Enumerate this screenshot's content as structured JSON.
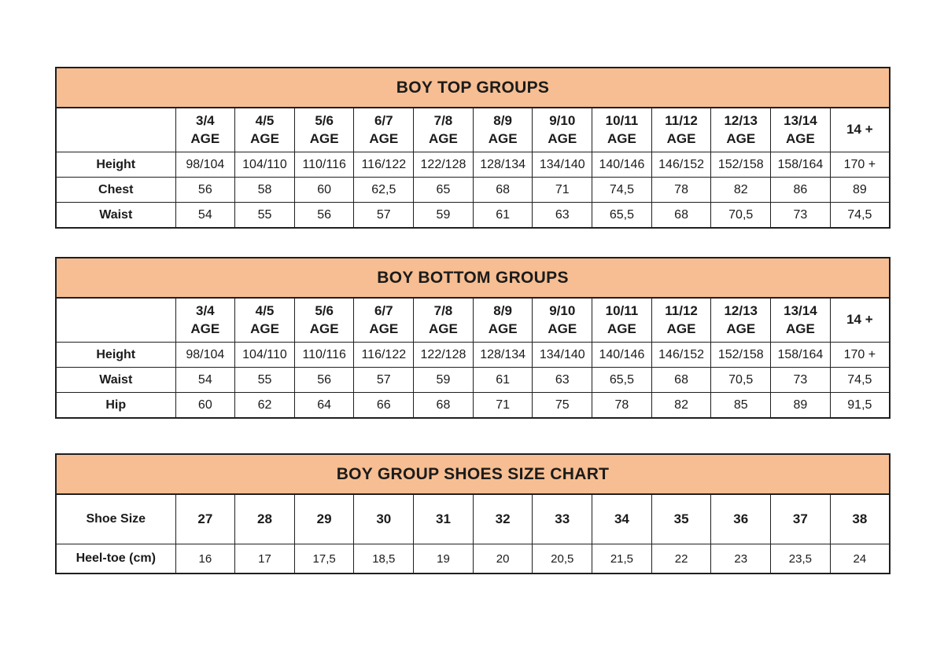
{
  "page": {
    "background": "#ffffff",
    "header_fill": "#f6be92",
    "border_color": "#1f1f1f",
    "text_color": "#1b1b1b"
  },
  "tables": [
    {
      "id": "boy-top-groups",
      "title": "BOY TOP GROUPS",
      "columns": [
        "3/4\nAGE",
        "4/5\nAGE",
        "5/6\nAGE",
        "6/7\nAGE",
        "7/8\nAGE",
        "8/9\nAGE",
        "9/10\nAGE",
        "10/11\nAGE",
        "11/12\nAGE",
        "12/13\nAGE",
        "13/14\nAGE",
        "14 +"
      ],
      "rows": [
        {
          "label": "Height",
          "values": [
            "98/104",
            "104/110",
            "110/116",
            "116/122",
            "122/128",
            "128/134",
            "134/140",
            "140/146",
            "146/152",
            "152/158",
            "158/164",
            "170 +"
          ]
        },
        {
          "label": "Chest",
          "values": [
            "56",
            "58",
            "60",
            "62,5",
            "65",
            "68",
            "71",
            "74,5",
            "78",
            "82",
            "86",
            "89"
          ]
        },
        {
          "label": "Waist",
          "values": [
            "54",
            "55",
            "56",
            "57",
            "59",
            "61",
            "63",
            "65,5",
            "68",
            "70,5",
            "73",
            "74,5"
          ]
        }
      ]
    },
    {
      "id": "boy-bottom-groups",
      "title": "BOY BOTTOM GROUPS",
      "columns": [
        "3/4\nAGE",
        "4/5\nAGE",
        "5/6\nAGE",
        "6/7\nAGE",
        "7/8\nAGE",
        "8/9\nAGE",
        "9/10\nAGE",
        "10/11\nAGE",
        "11/12\nAGE",
        "12/13\nAGE",
        "13/14\nAGE",
        "14 +"
      ],
      "rows": [
        {
          "label": "Height",
          "values": [
            "98/104",
            "104/110",
            "110/116",
            "116/122",
            "122/128",
            "128/134",
            "134/140",
            "140/146",
            "146/152",
            "152/158",
            "158/164",
            "170 +"
          ]
        },
        {
          "label": "Waist",
          "values": [
            "54",
            "55",
            "56",
            "57",
            "59",
            "61",
            "63",
            "65,5",
            "68",
            "70,5",
            "73",
            "74,5"
          ]
        },
        {
          "label": "Hip",
          "values": [
            "60",
            "62",
            "64",
            "66",
            "68",
            "71",
            "75",
            "78",
            "82",
            "85",
            "89",
            "91,5"
          ]
        }
      ]
    },
    {
      "id": "boy-shoes-size-chart",
      "title": "BOY GROUP SHOES SIZE CHART",
      "columns": [],
      "rows": [
        {
          "label": "Shoe Size",
          "bold": true,
          "values": [
            "27",
            "28",
            "29",
            "30",
            "31",
            "32",
            "33",
            "34",
            "35",
            "36",
            "37",
            "38"
          ]
        },
        {
          "label": "Heel-toe (cm)",
          "values": [
            "16",
            "17",
            "17,5",
            "18,5",
            "19",
            "20",
            "20,5",
            "21,5",
            "22",
            "23",
            "23,5",
            "24"
          ]
        }
      ]
    }
  ]
}
